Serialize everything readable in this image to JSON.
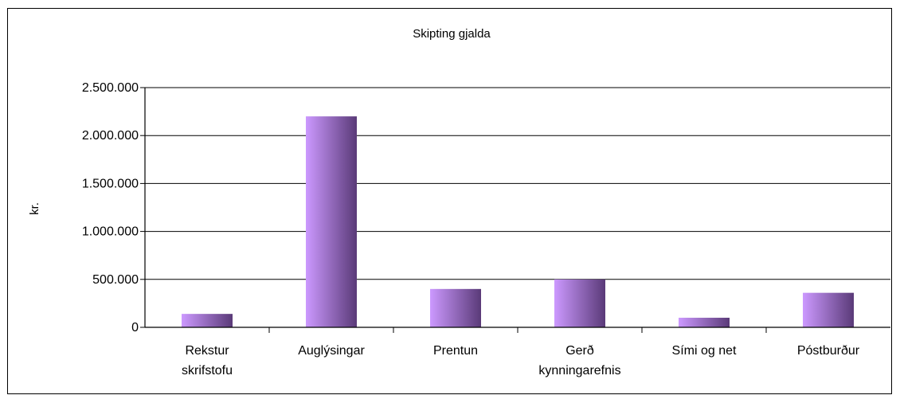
{
  "chart_data": {
    "type": "bar",
    "title": "Skipting gjalda",
    "xlabel": "",
    "ylabel": "kr.",
    "categories": [
      [
        "Rekstur",
        "skrifstofu"
      ],
      [
        "Auglýsingar"
      ],
      [
        "Prentun"
      ],
      [
        "Gerð",
        "kynningarefnis"
      ],
      [
        "Sími og net"
      ],
      [
        "Póstburður"
      ]
    ],
    "values": [
      140000,
      2200000,
      400000,
      500000,
      100000,
      360000
    ],
    "ylim": [
      0,
      2500000
    ],
    "yticks": [
      "0",
      "500.000",
      "1.000.000",
      "1.500.000",
      "2.000.000",
      "2.500.000"
    ],
    "grid": true,
    "legend": "none",
    "colors": {
      "bar_light": "#cc99ff",
      "bar_dark": "#5a3a78",
      "grid": "#000000",
      "frame": "#000000"
    }
  }
}
